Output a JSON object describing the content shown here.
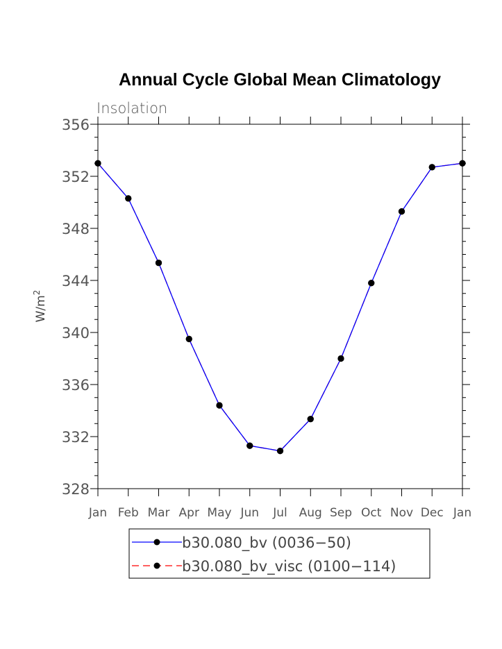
{
  "chart_data": {
    "type": "line",
    "title": "Annual Cycle Global Mean Climatology",
    "subtitle": "Insolation",
    "ylabel": "W/m",
    "ylabel_superscript": "2",
    "xlabel": "",
    "categories": [
      "Jan",
      "Feb",
      "Mar",
      "Apr",
      "May",
      "Jun",
      "Jul",
      "Aug",
      "Sep",
      "Oct",
      "Nov",
      "Dec",
      "Jan"
    ],
    "ylim": [
      328,
      356
    ],
    "yticks": [
      328,
      332,
      336,
      340,
      344,
      348,
      352,
      356
    ],
    "series": [
      {
        "name": "b30.080_bv (0036−50)",
        "color": "#0000ff",
        "line_style": "solid",
        "marker": "filled-circle",
        "values": [
          353.0,
          350.3,
          345.35,
          339.5,
          334.4,
          331.3,
          330.9,
          333.35,
          338.0,
          343.8,
          349.3,
          352.7,
          353.0
        ]
      },
      {
        "name": "b30.080_bv_visc (0100−114)",
        "color": "#ff0000",
        "line_style": "dashed",
        "marker": "filled-circle",
        "values": [
          353.0,
          350.3,
          345.35,
          339.5,
          334.4,
          331.3,
          330.9,
          333.35,
          338.0,
          343.8,
          349.3,
          352.7,
          353.0
        ]
      }
    ],
    "marker_color": "#000000",
    "grid": false,
    "legend_position": "bottom"
  }
}
